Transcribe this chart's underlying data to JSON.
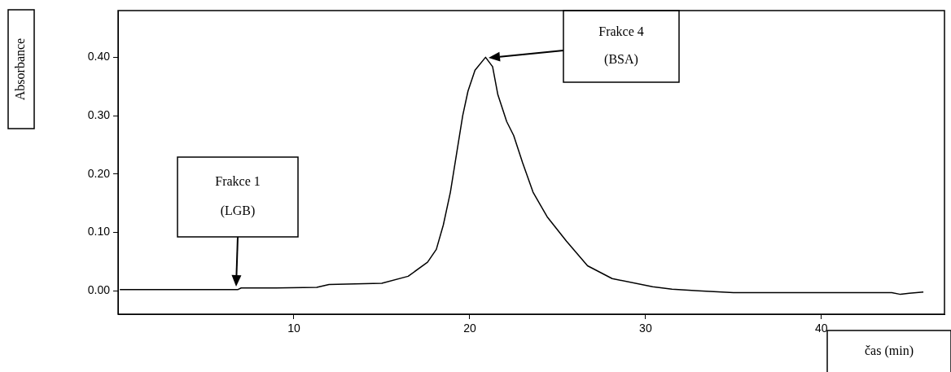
{
  "chart_data": {
    "type": "line",
    "xlabel": "čas (min)",
    "ylabel": "Absorbance",
    "x": [
      0.1,
      3,
      6.8,
      7,
      9,
      11.3,
      12,
      15,
      16.5,
      17.6,
      18.1,
      18.5,
      18.9,
      19.3,
      19.6,
      19.9,
      20.3,
      20.9,
      21.3,
      21.6,
      22.1,
      22.5,
      23,
      23.6,
      24.4,
      25.5,
      26.7,
      28.1,
      30.4,
      31.5,
      33,
      35,
      40,
      44,
      44.5,
      45,
      45.8
    ],
    "series": [
      {
        "color": "#000000",
        "values": [
          0.002,
          0.002,
          0.002,
          0.005,
          0.005,
          0.006,
          0.011,
          0.013,
          0.025,
          0.049,
          0.071,
          0.113,
          0.169,
          0.244,
          0.3,
          0.342,
          0.378,
          0.4,
          0.384,
          0.336,
          0.29,
          0.266,
          0.22,
          0.169,
          0.127,
          0.085,
          0.043,
          0.021,
          0.007,
          0.003,
          0,
          -0.003,
          -0.003,
          -0.003,
          -0.006,
          -0.004,
          -0.002
        ]
      }
    ],
    "xlim": [
      0,
      47
    ],
    "xticks": [
      10,
      20,
      30,
      40
    ],
    "ylim": [
      -0.04,
      0.48
    ],
    "yticks": [
      {
        "value": 0,
        "label": "0.00"
      },
      {
        "value": 0.1,
        "label": "0.10"
      },
      {
        "value": 0.2,
        "label": "0.20"
      },
      {
        "value": 0.3,
        "label": "0.30"
      },
      {
        "value": 0.4,
        "label": "0.40"
      }
    ],
    "grid": false,
    "legend": false,
    "marker": "none",
    "line_style": "solid",
    "annotations": [
      "Frakce 1\n(LGB)",
      "Frakce 4\n(BSA)"
    ]
  }
}
